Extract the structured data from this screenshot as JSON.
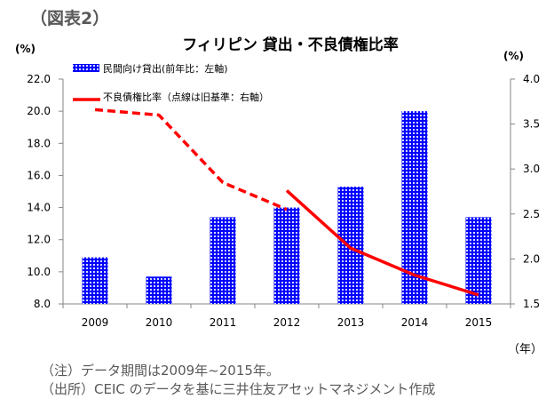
{
  "figure_label": "（図表2）",
  "note": "（注）データ期間は2009年~2015年。",
  "source": "（出所）CEIC のデータを基に三井住友アセットマネジメント作成",
  "chart_data": {
    "type": "bar",
    "title": "フィリピン 貸出・不良債権比率",
    "xlabel": "（年）",
    "ylabel": "(%)",
    "y2label": "(%)",
    "categories": [
      "2009",
      "2010",
      "2011",
      "2012",
      "2013",
      "2014",
      "2015"
    ],
    "ylim": [
      8.0,
      22.0
    ],
    "y_ticks": [
      "8.0",
      "10.0",
      "12.0",
      "14.0",
      "16.0",
      "18.0",
      "20.0",
      "22.0"
    ],
    "y2lim": [
      1.5,
      4.0
    ],
    "y2_ticks": [
      "1.5",
      "2.0",
      "2.5",
      "3.0",
      "3.5",
      "4.0"
    ],
    "grid": false,
    "legend_position": "top-left",
    "colors": {
      "bar": "#0000ff",
      "line": "#ff0000"
    },
    "series": [
      {
        "name": "民間向け貸出(前年比：左軸)",
        "type": "bar",
        "axis": "left",
        "values": [
          10.9,
          9.7,
          13.4,
          14.0,
          15.3,
          20.0,
          13.4
        ]
      },
      {
        "name": "不良債権比率（点線は旧基準：右軸）",
        "type": "line",
        "axis": "right",
        "segments": [
          {
            "style": "dashed",
            "categories": [
              "2009",
              "2010",
              "2011",
              "2012"
            ],
            "values": [
              3.66,
              3.6,
              2.85,
              2.55
            ]
          },
          {
            "style": "solid",
            "categories": [
              "2012",
              "2013",
              "2014",
              "2015"
            ],
            "values": [
              2.76,
              2.12,
              1.82,
              1.6
            ]
          }
        ]
      }
    ]
  }
}
